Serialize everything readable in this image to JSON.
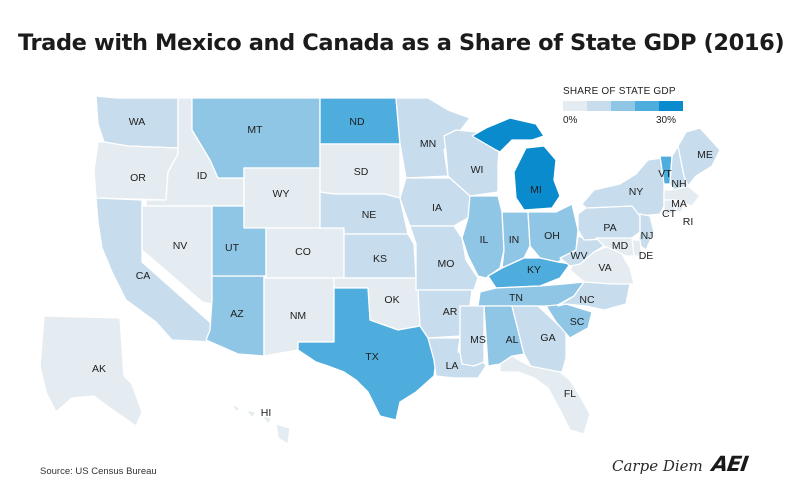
{
  "title": "Trade with Mexico and Canada as a Share of State GDP (2016)",
  "legend": {
    "title": "SHARE OF STATE GDP",
    "min_label": "0%",
    "max_label": "30%",
    "colors": [
      "#e5ecf1",
      "#c7dcec",
      "#8fc5e5",
      "#4fadde",
      "#0a8bcd"
    ]
  },
  "states": [
    {
      "code": "WA",
      "level": 1
    },
    {
      "code": "OR",
      "level": 0
    },
    {
      "code": "CA",
      "level": 1
    },
    {
      "code": "ID",
      "level": 0
    },
    {
      "code": "NV",
      "level": 0
    },
    {
      "code": "AZ",
      "level": 2
    },
    {
      "code": "UT",
      "level": 2
    },
    {
      "code": "MT",
      "level": 2
    },
    {
      "code": "WY",
      "level": 0
    },
    {
      "code": "CO",
      "level": 0
    },
    {
      "code": "NM",
      "level": 0
    },
    {
      "code": "ND",
      "level": 3
    },
    {
      "code": "SD",
      "level": 0
    },
    {
      "code": "NE",
      "level": 1
    },
    {
      "code": "KS",
      "level": 1
    },
    {
      "code": "OK",
      "level": 0
    },
    {
      "code": "TX",
      "level": 3
    },
    {
      "code": "MN",
      "level": 1
    },
    {
      "code": "IA",
      "level": 1
    },
    {
      "code": "MO",
      "level": 1
    },
    {
      "code": "AR",
      "level": 1
    },
    {
      "code": "LA",
      "level": 1
    },
    {
      "code": "WI",
      "level": 1
    },
    {
      "code": "IL",
      "level": 2
    },
    {
      "code": "MI",
      "level": 4
    },
    {
      "code": "IN",
      "level": 2
    },
    {
      "code": "OH",
      "level": 2
    },
    {
      "code": "KY",
      "level": 3
    },
    {
      "code": "TN",
      "level": 2
    },
    {
      "code": "MS",
      "level": 1
    },
    {
      "code": "AL",
      "level": 2
    },
    {
      "code": "GA",
      "level": 1
    },
    {
      "code": "FL",
      "level": 0
    },
    {
      "code": "SC",
      "level": 2
    },
    {
      "code": "NC",
      "level": 1
    },
    {
      "code": "VA",
      "level": 0
    },
    {
      "code": "WV",
      "level": 1
    },
    {
      "code": "PA",
      "level": 1
    },
    {
      "code": "NY",
      "level": 1
    },
    {
      "code": "VT",
      "level": 3
    },
    {
      "code": "NH",
      "level": 1
    },
    {
      "code": "ME",
      "level": 1
    },
    {
      "code": "MA",
      "level": 0
    },
    {
      "code": "CT",
      "level": 0
    },
    {
      "code": "RI",
      "level": 0
    },
    {
      "code": "NJ",
      "level": 1
    },
    {
      "code": "DE",
      "level": 0
    },
    {
      "code": "MD",
      "level": 0
    },
    {
      "code": "AK",
      "level": 0
    },
    {
      "code": "HI",
      "level": 0
    }
  ],
  "source": "Source: US Census Bureau",
  "brand": "Carpe Diem",
  "logo": "AEI"
}
